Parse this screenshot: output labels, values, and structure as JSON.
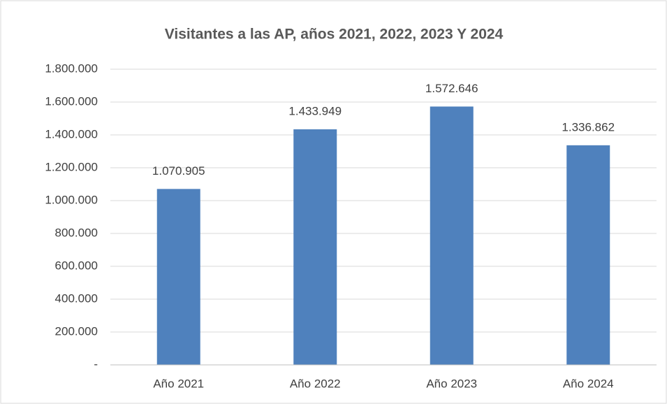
{
  "chart_data": {
    "type": "bar",
    "title": "Visitantes a las AP, años 2021, 2022, 2023 Y 2024",
    "categories": [
      "Año 2021",
      "Año 2022",
      "Año 2023",
      "Año 2024"
    ],
    "values": [
      1070905,
      1433949,
      1572646,
      1336862
    ],
    "value_labels": [
      "1.070.905",
      "1.433.949",
      "1.572.646",
      "1.336.862"
    ],
    "color": "#4f81bd",
    "ylim": [
      0,
      1800000
    ],
    "yticks": [
      {
        "value": 0,
        "label": "-"
      },
      {
        "value": 200000,
        "label": "200.000"
      },
      {
        "value": 400000,
        "label": "400.000"
      },
      {
        "value": 600000,
        "label": "600.000"
      },
      {
        "value": 800000,
        "label": "800.000"
      },
      {
        "value": 1000000,
        "label": "1.000.000"
      },
      {
        "value": 1200000,
        "label": "1.200.000"
      },
      {
        "value": 1400000,
        "label": "1.400.000"
      },
      {
        "value": 1600000,
        "label": "1.600.000"
      },
      {
        "value": 1800000,
        "label": "1.800.000"
      }
    ],
    "grid": true
  }
}
